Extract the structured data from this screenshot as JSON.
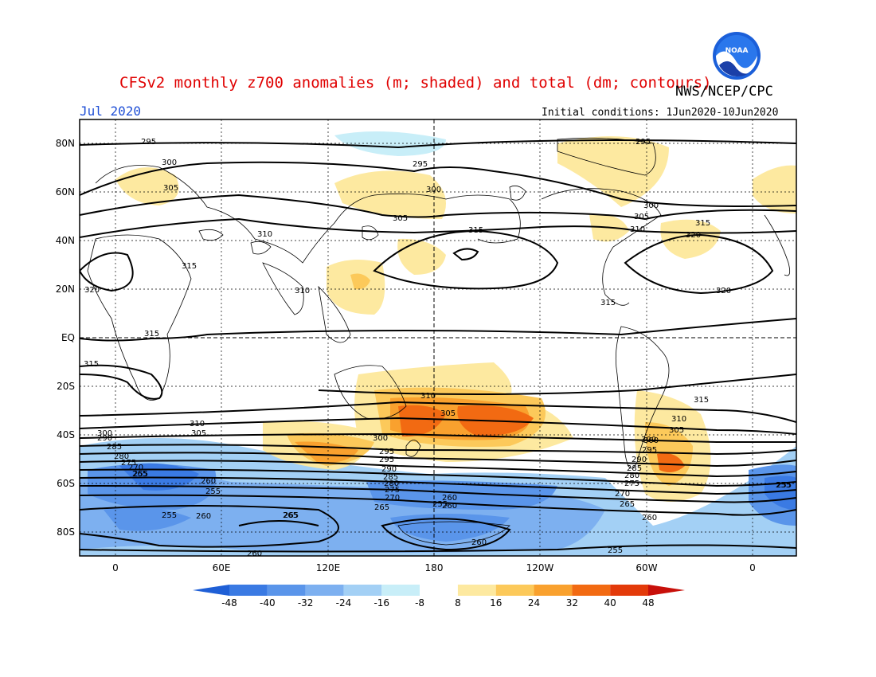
{
  "header": {
    "title": "CFSv2 monthly z700 anomalies (m; shaded) and total (dm; contours)",
    "agency": "NWS/NCEP/CPC",
    "month": "Jul 2020",
    "initial_conditions": "Initial conditions: 1Jun2020-10Jun2020",
    "logo_text": "NOAA"
  },
  "map": {
    "lat_labels": [
      "80N",
      "60N",
      "40N",
      "20N",
      "EQ",
      "20S",
      "40S",
      "60S",
      "80S"
    ],
    "lon_labels": [
      "0",
      "60E",
      "120E",
      "180",
      "120W",
      "60W",
      "0"
    ],
    "contour_labels": [
      "295",
      "300",
      "305",
      "310",
      "315",
      "320",
      "315",
      "315",
      "315",
      "310",
      "305",
      "300",
      "295",
      "290",
      "285",
      "280",
      "275",
      "270",
      "265",
      "260",
      "255",
      "295",
      "300",
      "305",
      "310",
      "315",
      "320",
      "300",
      "295",
      "290",
      "285",
      "280",
      "275",
      "270",
      "265",
      "260",
      "255",
      "295",
      "300",
      "305",
      "310",
      "315",
      "320",
      "310",
      "315",
      "305",
      "300",
      "295",
      "290",
      "285",
      "280",
      "275",
      "270",
      "265",
      "260",
      "255",
      "260",
      "255",
      "260",
      "265",
      "255",
      "260",
      "255",
      "260",
      "265",
      "255",
      "310",
      "305",
      "300"
    ]
  },
  "colorbar": {
    "ticks": [
      "-48",
      "-40",
      "-32",
      "-24",
      "-16",
      "-8",
      "8",
      "16",
      "24",
      "32",
      "40",
      "48"
    ],
    "colors": [
      "#1f5fd6",
      "#3a7ae3",
      "#5a95ea",
      "#7db0f0",
      "#a3d0f5",
      "#c8eef8",
      "#ffffff",
      "#fde9a0",
      "#fcc95a",
      "#f9a12e",
      "#f26a12",
      "#e33a0a",
      "#c8100a"
    ]
  }
}
